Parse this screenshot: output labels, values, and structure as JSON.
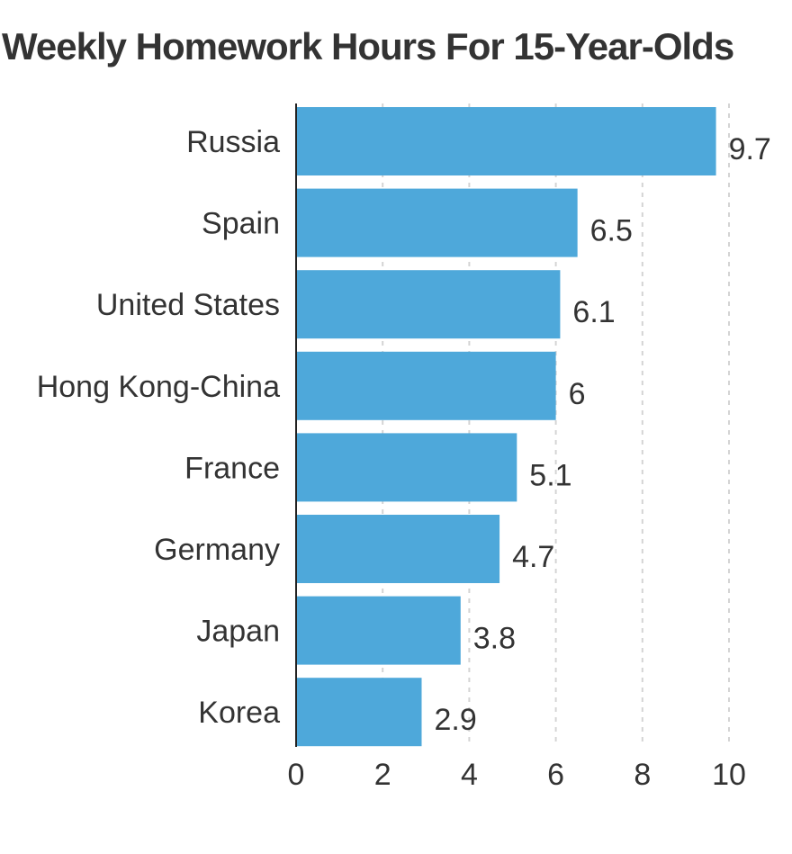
{
  "chart_data": {
    "type": "bar",
    "orientation": "horizontal",
    "title": "Weekly Homework Hours For 15-Year-Olds",
    "xlabel": "",
    "ylabel": "",
    "categories": [
      "Russia",
      "Spain",
      "United States",
      "Hong Kong-China",
      "France",
      "Germany",
      "Japan",
      "Korea"
    ],
    "values": [
      9.7,
      6.5,
      6.1,
      6,
      5.1,
      4.7,
      3.8,
      2.9
    ],
    "value_labels": [
      "9.7",
      "6.5",
      "6.1",
      "6",
      "5.1",
      "4.7",
      "3.8",
      "2.9"
    ],
    "xlim": [
      0,
      10
    ],
    "xticks": [
      0,
      2,
      4,
      6,
      8,
      10
    ],
    "grid": "vertical dashed",
    "bar_color": "#4EA8DA"
  }
}
